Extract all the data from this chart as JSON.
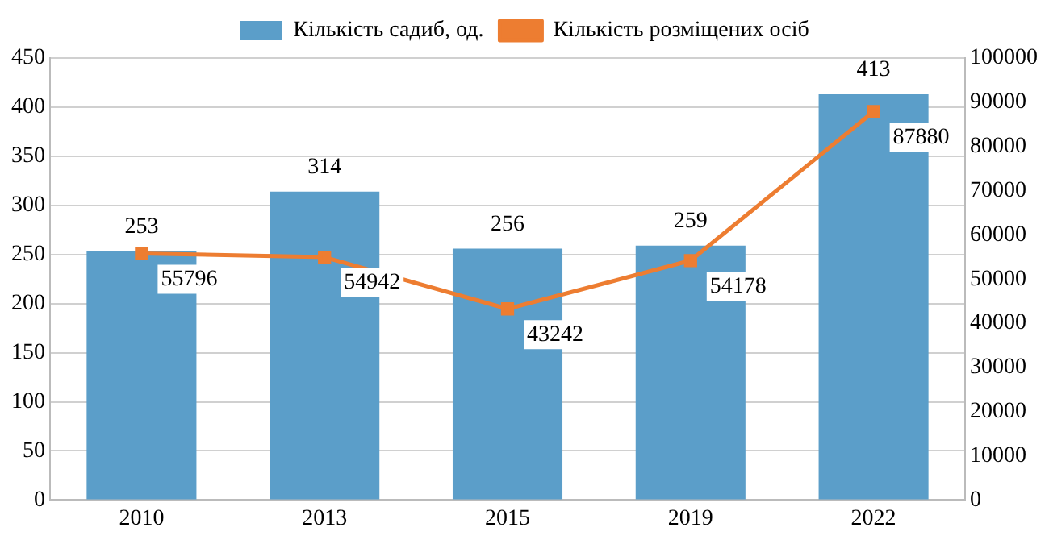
{
  "chart_data": {
    "type": "bar",
    "categories": [
      "2010",
      "2013",
      "2015",
      "2019",
      "2022"
    ],
    "series": [
      {
        "name": "Кількість садиб, од.",
        "color": "#5b9ec9",
        "values": [
          253,
          314,
          256,
          259,
          413
        ]
      },
      {
        "name": "Кількість розміщених осіб",
        "type": "line",
        "axis": "y2",
        "color": "#ed7d31",
        "marker": "square",
        "values": [
          55796,
          54942,
          43242,
          54178,
          87880
        ]
      }
    ],
    "ylim": [
      0,
      450
    ],
    "yticks": [
      0,
      50,
      100,
      150,
      200,
      250,
      300,
      350,
      400,
      450
    ],
    "y2lim": [
      0,
      100000
    ],
    "y2ticks": [
      0,
      10000,
      20000,
      30000,
      40000,
      50000,
      60000,
      70000,
      80000,
      90000,
      100000
    ],
    "grid": "y",
    "legend": "top",
    "data_labels": true
  }
}
